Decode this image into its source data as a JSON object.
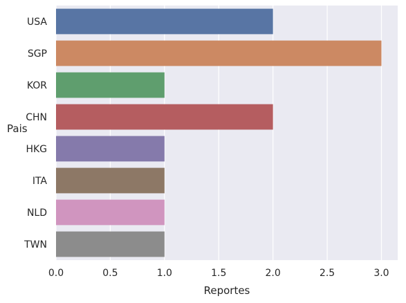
{
  "chart_data": {
    "type": "bar",
    "orientation": "horizontal",
    "categories": [
      "USA",
      "SGP",
      "KOR",
      "CHN",
      "HKG",
      "ITA",
      "NLD",
      "TWN"
    ],
    "values": [
      2,
      3,
      1,
      2,
      1,
      1,
      1,
      1
    ],
    "colors": [
      "#5875a4",
      "#cc8963",
      "#5f9e6e",
      "#b55d60",
      "#857aab",
      "#8d7866",
      "#d095bf",
      "#8c8c8c"
    ],
    "xlabel": "Reportes",
    "ylabel": "Pais",
    "xlim": [
      0,
      3.15
    ],
    "xticks": [
      "0.0",
      "0.5",
      "1.0",
      "1.5",
      "2.0",
      "2.5",
      "3.0"
    ],
    "grid": true,
    "background": "#eaeaf2"
  }
}
